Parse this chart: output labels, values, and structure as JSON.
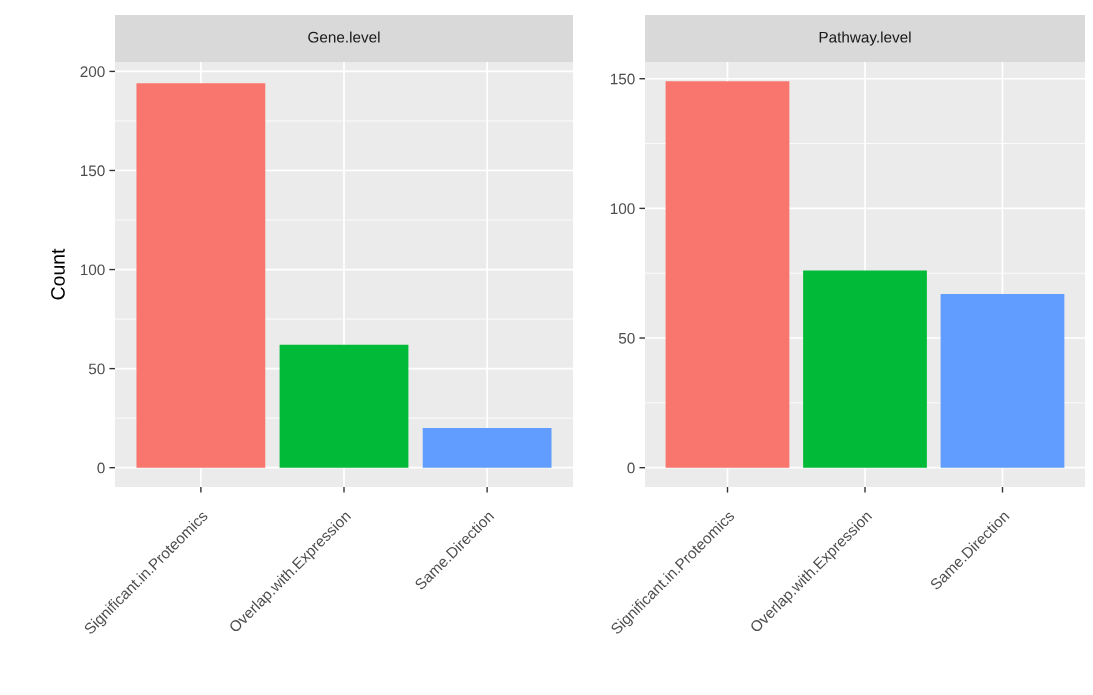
{
  "chart_data": [
    {
      "type": "bar",
      "title": "Gene.level",
      "ylabel": "Count",
      "categories": [
        "Significant.in.Proteomics",
        "Overlap.with.Expression",
        "Same.Direction"
      ],
      "values": [
        194,
        62,
        20
      ],
      "colors": [
        "#f8766d",
        "#00ba38",
        "#619cff"
      ],
      "ylim": [
        -9.75,
        204.75
      ],
      "yticks": [
        0,
        50,
        100,
        150,
        200
      ],
      "grid": true,
      "legend": false
    },
    {
      "type": "bar",
      "title": "Pathway.level",
      "categories": [
        "Significant.in.Proteomics",
        "Overlap.with.Expression",
        "Same.Direction"
      ],
      "values": [
        149,
        76,
        67
      ],
      "colors": [
        "#f8766d",
        "#00ba38",
        "#619cff"
      ],
      "ylim": [
        -7.45,
        156.45
      ],
      "yticks": [
        0,
        50,
        100,
        150
      ],
      "grid": true,
      "legend": false
    }
  ]
}
